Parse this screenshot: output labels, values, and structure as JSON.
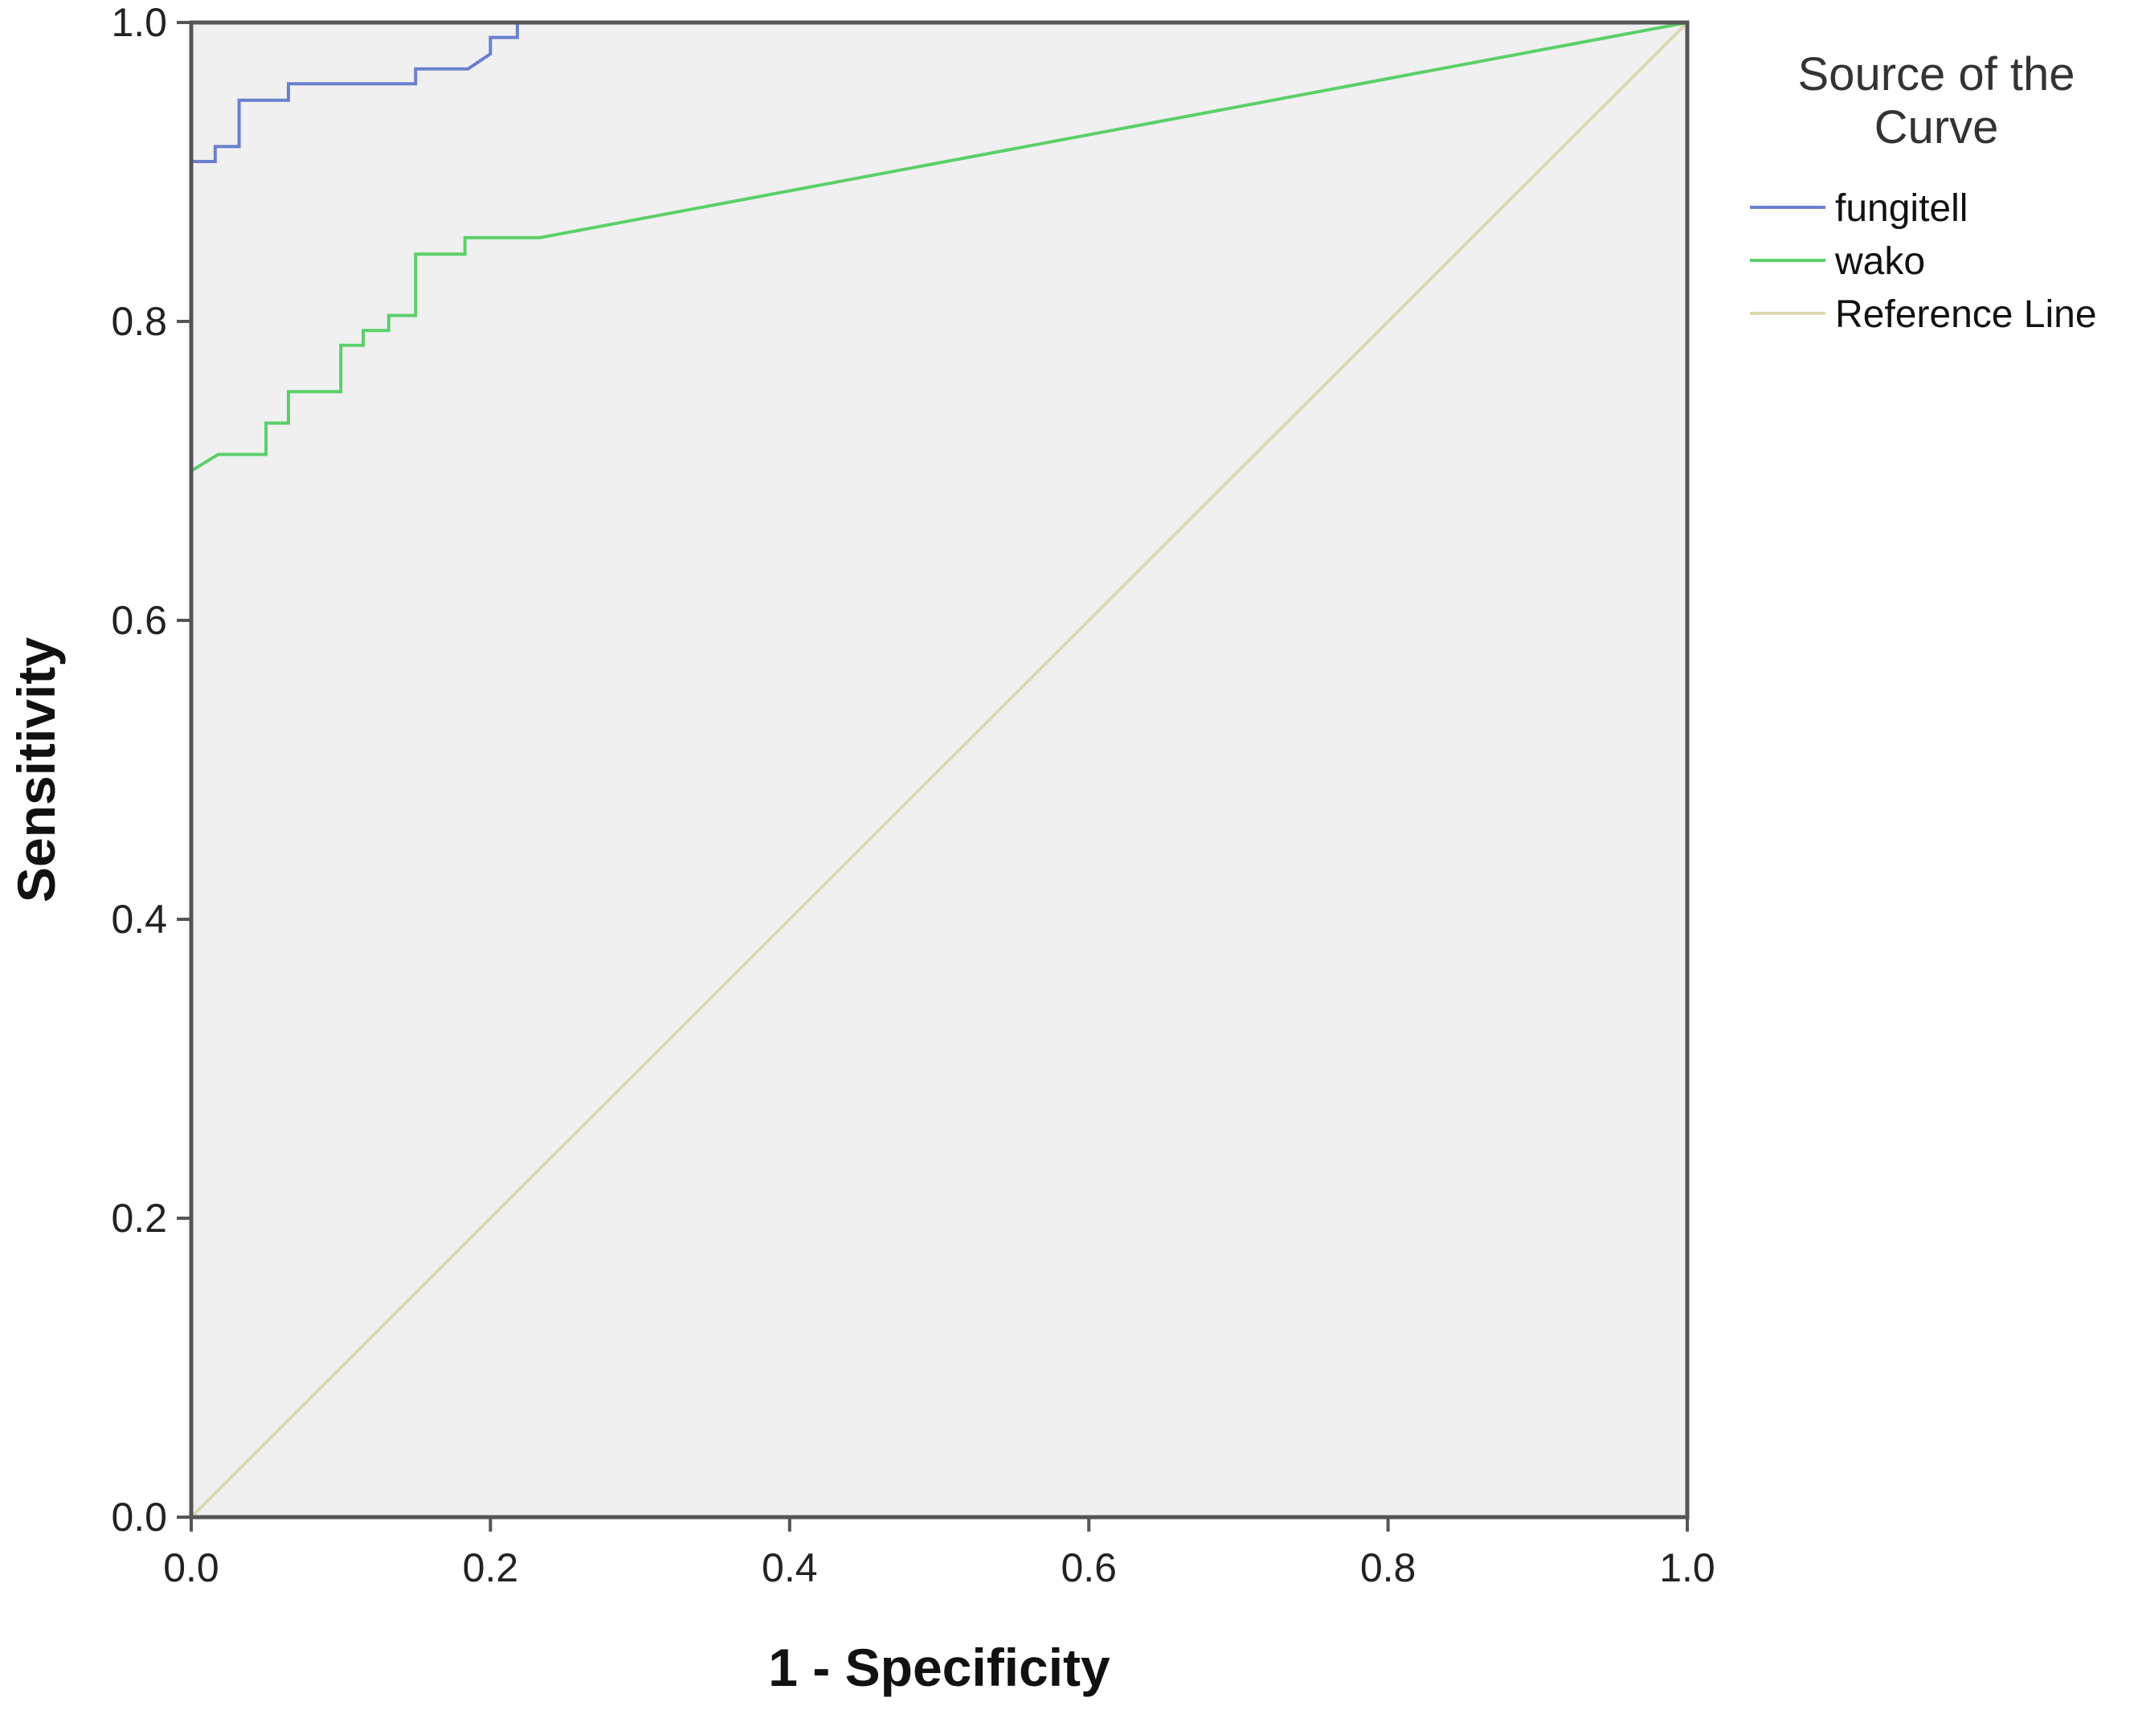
{
  "chart_data": {
    "type": "line",
    "title": "",
    "xlabel": "1 - Specificity",
    "ylabel": "Sensitivity",
    "xlim": [
      0,
      1
    ],
    "ylim": [
      0,
      1
    ],
    "x_ticks": [
      "0.0",
      "0.2",
      "0.4",
      "0.6",
      "0.8",
      "1.0"
    ],
    "y_ticks": [
      "0.0",
      "0.2",
      "0.4",
      "0.6",
      "0.8",
      "1.0"
    ],
    "grid": false,
    "legend": {
      "title_lines": [
        "Source of the",
        "Curve"
      ],
      "placement": "top-right outside"
    },
    "series": [
      {
        "name": "fungitell",
        "color": "#6a7fd0",
        "points": [
          [
            0,
            0
          ],
          [
            0,
            0.907
          ],
          [
            0.016,
            0.907
          ],
          [
            0.016,
            0.917
          ],
          [
            0.032,
            0.917
          ],
          [
            0.032,
            0.948
          ],
          [
            0.065,
            0.948
          ],
          [
            0.065,
            0.959
          ],
          [
            0.15,
            0.959
          ],
          [
            0.15,
            0.969
          ],
          [
            0.185,
            0.969
          ],
          [
            0.2,
            0.979
          ],
          [
            0.2,
            0.99
          ],
          [
            0.218,
            0.99
          ],
          [
            0.218,
            1.0
          ],
          [
            1.0,
            1.0
          ]
        ]
      },
      {
        "name": "wako",
        "color": "#5ccf6a",
        "points": [
          [
            0,
            0
          ],
          [
            0,
            0.7
          ],
          [
            0.018,
            0.711
          ],
          [
            0.05,
            0.711
          ],
          [
            0.05,
            0.732
          ],
          [
            0.065,
            0.732
          ],
          [
            0.065,
            0.753
          ],
          [
            0.1,
            0.753
          ],
          [
            0.1,
            0.784
          ],
          [
            0.115,
            0.784
          ],
          [
            0.115,
            0.794
          ],
          [
            0.132,
            0.794
          ],
          [
            0.132,
            0.804
          ],
          [
            0.15,
            0.804
          ],
          [
            0.15,
            0.845
          ],
          [
            0.183,
            0.845
          ],
          [
            0.183,
            0.856
          ],
          [
            0.233,
            0.856
          ],
          [
            1.0,
            1.0
          ]
        ]
      },
      {
        "name": "Reference Line",
        "color": "#ddd8b0",
        "points": [
          [
            0,
            0
          ],
          [
            1,
            1
          ]
        ]
      }
    ]
  }
}
